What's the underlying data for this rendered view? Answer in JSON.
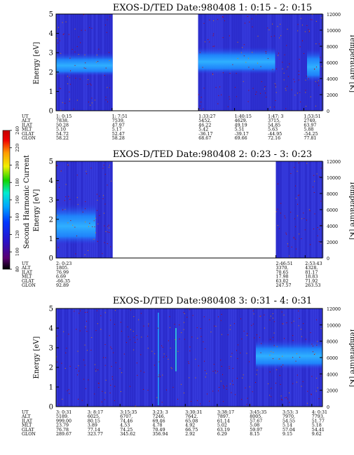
{
  "chart_data": [
    {
      "type": "heatmap",
      "title": "EXOS-D/TED   Date:980408  1: 0:15 - 2: 0:15",
      "ylabel": "Energy [eV]",
      "y2label": "Temperature [K]",
      "ylim": [
        0,
        5
      ],
      "y2lim": [
        0,
        12000
      ],
      "yticks": [
        "0",
        "1",
        "2",
        "3",
        "4",
        "5"
      ],
      "y2ticks": [
        "0",
        "2000",
        "4000",
        "6000",
        "8000",
        "10000",
        "12000"
      ],
      "segments": [
        [
          0,
          0.2125
        ],
        [
          0.5333,
          1.0
        ]
      ],
      "ephemeris": {
        "labels": [
          "UT",
          "ALT",
          "ILAT",
          "MLT",
          "GLAT",
          "GLON"
        ],
        "columns": [
          {
            "at": 0.0,
            "values": [
              "1: 0:15",
              "7838.",
              "50.28",
              "5.10",
              "54.72",
              "58.22"
            ]
          },
          {
            "at": 0.21,
            "values": [
              "1: 7:51",
              "7539.",
              "47.97",
              "5.17",
              "52.47",
              "58.28"
            ]
          },
          {
            "at": 0.535,
            "values": [
              "1:33:27",
              "5452.",
              "46.22",
              "5.42",
              "-36.17",
              "68.67"
            ]
          },
          {
            "at": 0.67,
            "values": [
              "1:40:15",
              "4629.",
              "49.19",
              "5.51",
              "-39.17",
              "69.66"
            ]
          },
          {
            "at": 0.795,
            "values": [
              "1:47: 3",
              "3715.",
              "54.85",
              "5.63",
              "-44.95",
              "72.16"
            ]
          },
          {
            "at": 0.93,
            "values": [
              "1:53:51",
              "2740.",
              "63.97",
              "5.88",
              "-54.25",
              "77.81"
            ]
          }
        ]
      }
    },
    {
      "type": "heatmap",
      "title": "EXOS-D/TED   Date:980408  2: 0:23 - 3: 0:23",
      "ylabel": "Energy [eV]",
      "y2label": "Temperature [K]",
      "ylim": [
        0,
        5
      ],
      "y2lim": [
        0,
        12000
      ],
      "yticks": [
        "0",
        "1",
        "2",
        "3",
        "4",
        "5"
      ],
      "y2ticks": [
        "0",
        "2000",
        "4000",
        "6000",
        "8000",
        "10000",
        "12000"
      ],
      "segments": [
        [
          0,
          0.2125
        ],
        [
          0.825,
          1.0
        ]
      ],
      "ephemeris": {
        "labels": [
          "UT",
          "ALT",
          "ILAT",
          "MLT",
          "GLAT",
          "GLON"
        ],
        "columns": [
          {
            "at": 0.0,
            "values": [
              "2: 0:23",
              "1805.",
              "76.99",
              "6.69",
              "-66.35",
              "92.89"
            ]
          },
          {
            "at": 0.825,
            "values": [
              "2:46:51",
              "3370.",
              "70.65",
              "17.98",
              "63.02",
              "247.57"
            ]
          },
          {
            "at": 0.935,
            "values": [
              "2:53:43",
              "4328.",
              "81.17",
              "18.83",
              "71.92",
              "263.53"
            ]
          }
        ]
      }
    },
    {
      "type": "heatmap",
      "title": "EXOS-D/TED   Date:980408  3: 0:31 - 4: 0:31",
      "ylabel": "Energy [eV]",
      "y2label": "Temperature [K]",
      "ylim": [
        0,
        5
      ],
      "y2lim": [
        0,
        12000
      ],
      "yticks": [
        "0",
        "1",
        "2",
        "3",
        "4",
        "5"
      ],
      "y2ticks": [
        "0",
        "2000",
        "4000",
        "6000",
        "8000",
        "10000",
        "12000"
      ],
      "segments": [
        [
          0,
          1.0
        ]
      ],
      "ephemeris": {
        "labels": [
          "UT",
          "ALT",
          "ILAT",
          "MLT",
          "GLAT",
          "GLON"
        ],
        "columns": [
          {
            "at": 0.0,
            "values": [
              "3: 0:31",
              "5189.",
              "999.00",
              "23.79",
              "76.78",
              "289.67"
            ]
          },
          {
            "at": 0.118,
            "values": [
              "3: 8:17",
              "6025.",
              "80.15",
              "3.89",
              "77.14",
              "323.77"
            ]
          },
          {
            "at": 0.24,
            "values": [
              "3:15:35",
              "6707.",
              "74.46",
              "4.53",
              "74.25",
              "345.62"
            ]
          },
          {
            "at": 0.362,
            "values": [
              "3:23: 3",
              "7246.",
              "69.46",
              "4.78",
              "70.49",
              "356.94"
            ]
          },
          {
            "at": 0.485,
            "values": [
              "3:30:31",
              "7642.",
              "65.08",
              "4.92",
              "66.75",
              "2.92"
            ]
          },
          {
            "at": 0.605,
            "values": [
              "3:38:17",
              "7897.",
              "61.14",
              "5.02",
              "63.19",
              "6.29"
            ]
          },
          {
            "at": 0.727,
            "values": [
              "3:45:35",
              "8005.",
              "57.67",
              "5.08",
              "59.97",
              "8.15"
            ]
          },
          {
            "at": 0.85,
            "values": [
              "3:53: 3",
              "7970.",
              "54.55",
              "5.14",
              "57.04",
              "9.15"
            ]
          },
          {
            "at": 0.96,
            "values": [
              "4: 0:31",
              "7793.",
              "51.77",
              "5.18",
              "54.41",
              "9.62"
            ]
          }
        ]
      }
    }
  ],
  "colorbar": {
    "label": "Second Harmonic Current",
    "ticks": [
      "80",
      "100",
      "120",
      "140",
      "160",
      "180",
      "200",
      "220",
      "240"
    ],
    "colors": [
      "#000000",
      "#5a0072",
      "#2a10c8",
      "#0037ff",
      "#00a5ff",
      "#00ecd0",
      "#12d400",
      "#f0f000",
      "#ff9a00",
      "#f00000",
      "#c40000"
    ]
  }
}
